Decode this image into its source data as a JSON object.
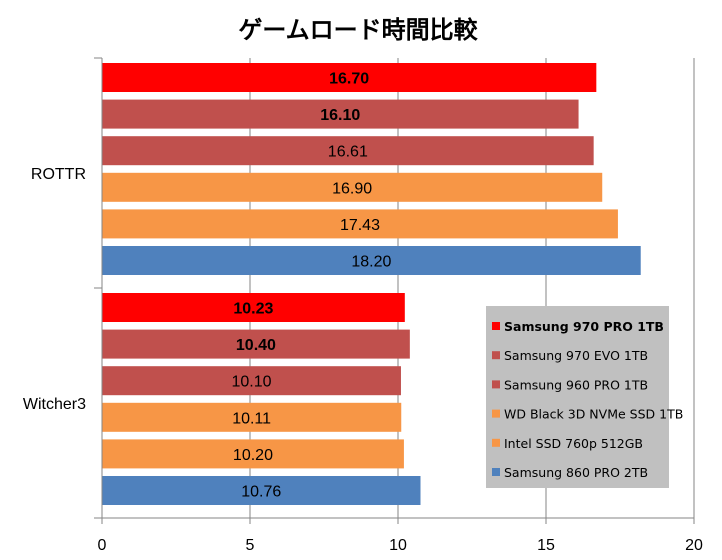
{
  "chart_data": {
    "type": "bar",
    "orientation": "horizontal",
    "title": "ゲームロード時間比較",
    "categories": [
      "ROTTR",
      "Witcher3"
    ],
    "series": [
      {
        "name": "Samsung 970 PRO 1TB",
        "color": "#ff0000",
        "bold": true,
        "values": [
          16.7,
          10.23
        ],
        "labels": [
          "16.70",
          "10.23"
        ]
      },
      {
        "name": "Samsung 970 EVO 1TB",
        "color": "#c0504d",
        "bold": true,
        "values": [
          16.1,
          10.4
        ],
        "labels": [
          "16.10",
          "10.40"
        ]
      },
      {
        "name": "Samsung 960 PRO 1TB",
        "color": "#c0504d",
        "bold": false,
        "values": [
          16.61,
          10.1
        ],
        "labels": [
          "16.61",
          "10.10"
        ]
      },
      {
        "name": "WD Black 3D NVMe SSD 1TB",
        "color": "#f79646",
        "bold": false,
        "values": [
          16.9,
          10.11
        ],
        "labels": [
          "16.90",
          "10.11"
        ]
      },
      {
        "name": "Intel SSD 760p 512GB",
        "color": "#f79646",
        "bold": false,
        "values": [
          17.43,
          10.2
        ],
        "labels": [
          "17.43",
          "10.20"
        ]
      },
      {
        "name": "Samsung 860 PRO 2TB",
        "color": "#4f81bd",
        "bold": false,
        "values": [
          18.2,
          10.76
        ],
        "labels": [
          "18.20",
          "10.76"
        ]
      }
    ],
    "xlim": [
      0,
      20
    ],
    "xticks": [
      0,
      5,
      10,
      15,
      20
    ],
    "xtick_labels": [
      "0",
      "5",
      "10",
      "15",
      "20"
    ],
    "grid": true,
    "legend": {
      "position": "right",
      "background": "#c0c0c0",
      "first_entry_bold": true
    }
  }
}
